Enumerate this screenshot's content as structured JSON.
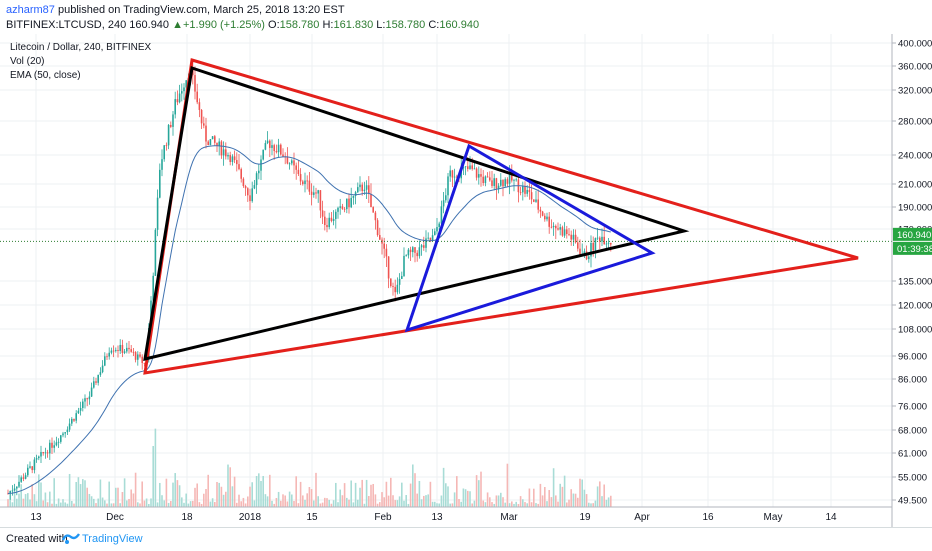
{
  "header": {
    "author": "azharm87",
    "published_text": "published on TradingView.com, March 25, 2018 13:20 EST",
    "symbol_line": "BITFINEX:LTCUSD, 240",
    "last": "160.940",
    "change_arrow": "▲",
    "change": "+1.990 (+1.25%)",
    "o_label": "O:",
    "o_value": "158.780",
    "h_label": "H:",
    "h_value": "161.830",
    "l_label": "L:",
    "l_value": "158.780",
    "c_label": "C:",
    "c_value": "160.940"
  },
  "legend": {
    "title": "Litecoin / Dollar, 240, BITFINEX",
    "vol": "Vol (20)",
    "ema": "EMA (50, close)"
  },
  "price_badges": {
    "price": "160.940",
    "timer": "01:39:38"
  },
  "footer": {
    "created_with": "Created with",
    "brand": "TradingView"
  },
  "colors": {
    "up": "#26a69a",
    "down": "#ef5350",
    "ema": "#3f72b0",
    "red_triangle": "#e3201b",
    "black_triangle": "#000000",
    "blue_triangle": "#1a1adb",
    "price_line": "#2e7d32",
    "badge_green": "#27a541"
  },
  "chart_data": {
    "type": "candlestick",
    "title": "Litecoin / Dollar, 240, BITFINEX",
    "y_scale": "log",
    "ylim": [
      48,
      410
    ],
    "y_ticks": [
      "400.000",
      "360.000",
      "320.000",
      "280.000",
      "240.000",
      "210.000",
      "190.000",
      "170.000",
      "135.000",
      "120.000",
      "108.000",
      "96.000",
      "86.000",
      "76.000",
      "68.000",
      "61.000",
      "55.000",
      "49.500"
    ],
    "x_ticks": [
      "13",
      "Dec",
      "18",
      "2018",
      "15",
      "Feb",
      "13",
      "Mar",
      "19",
      "Apr",
      "16",
      "May",
      "14"
    ],
    "series": [
      {
        "name": "EMA (50, close)",
        "values_approx": [
          60,
          70,
          85,
          130,
          220,
          250,
          245,
          215,
          185,
          175,
          190,
          205,
          190,
          165,
          160
        ]
      }
    ],
    "drawings": [
      {
        "name": "red_triangle",
        "vertices": [
          [
            "2017-12-22",
            365
          ],
          [
            "2018-05-19",
            153
          ],
          [
            "2017-12-22",
            88
          ]
        ]
      },
      {
        "name": "black_triangle",
        "vertices": [
          [
            "2017-12-22",
            355
          ],
          [
            "2018-04-08",
            167
          ],
          [
            "2017-12-22",
            93
          ]
        ]
      },
      {
        "name": "blue_triangle",
        "vertices": [
          [
            "2018-02-15",
            248
          ],
          [
            "2018-03-28",
            152
          ],
          [
            "2018-02-06",
            107
          ]
        ]
      }
    ],
    "last_price": 160.94,
    "grid": true
  }
}
